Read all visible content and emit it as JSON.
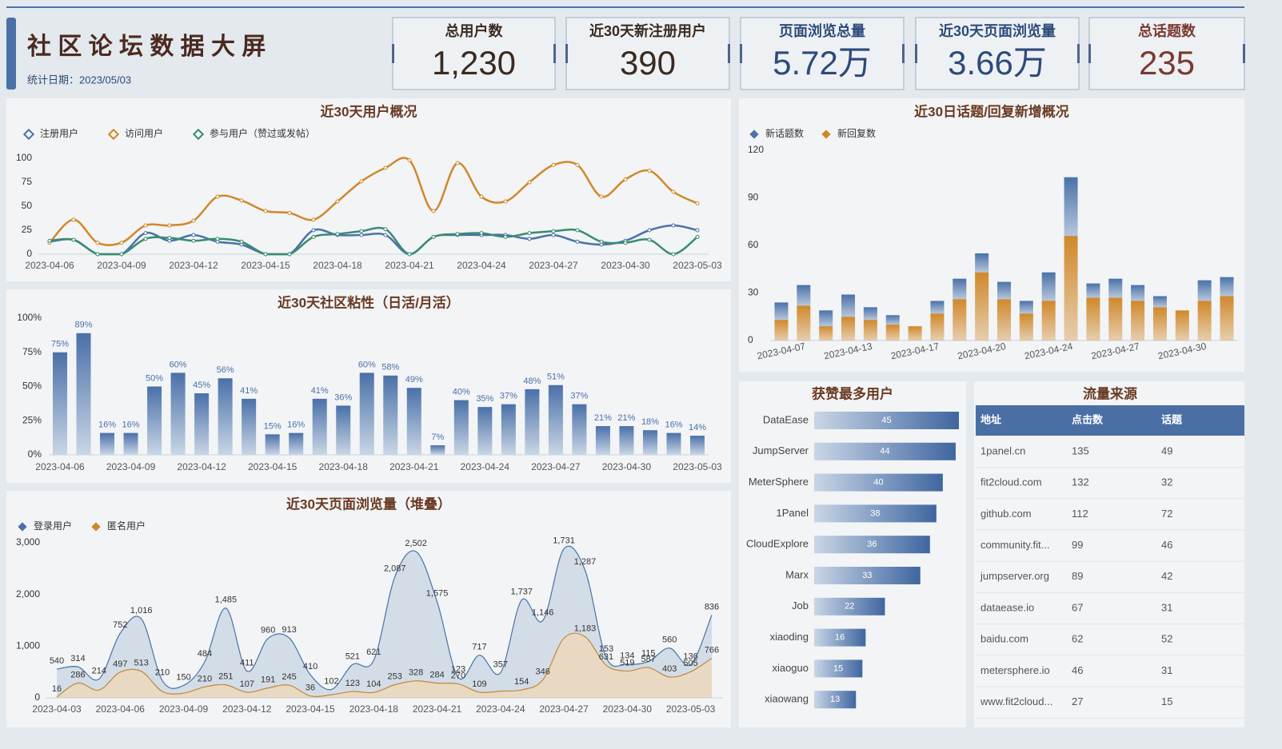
{
  "header": {
    "title": "社 区 论 坛 数 据 大 屏",
    "date": "统计日期：2023/05/03"
  },
  "kpis": [
    {
      "label": "总用户数",
      "value": "1,230",
      "color": "#3a2a20"
    },
    {
      "label": "近30天新注册用户",
      "value": "390",
      "color": "#3a2a20"
    },
    {
      "label": "页面浏览总量",
      "value": "5.72万",
      "color": "#2d4a7a"
    },
    {
      "label": "近30天页面浏览量",
      "value": "3.66万",
      "color": "#2d4a7a"
    },
    {
      "label": "总话题数",
      "value": "235",
      "color": "#7a3a30"
    }
  ],
  "chart_data": [
    {
      "type": "line",
      "title": "近30天用户概况",
      "categories": [
        "2023-04-06",
        null,
        null,
        "2023-04-09",
        null,
        null,
        "2023-04-12",
        null,
        null,
        "2023-04-15",
        null,
        null,
        "2023-04-18",
        null,
        null,
        "2023-04-21",
        null,
        null,
        "2023-04-24",
        null,
        null,
        "2023-04-27",
        null,
        null,
        "2023-04-30",
        null,
        null,
        "2023-05-03"
      ],
      "series": [
        {
          "name": "注册用户",
          "color": "#4a72a8",
          "values": [
            13,
            15,
            0,
            0,
            22,
            14,
            20,
            13,
            10,
            0,
            0,
            25,
            20,
            20,
            20,
            0,
            18,
            20,
            20,
            20,
            16,
            20,
            13,
            10,
            14,
            25,
            30,
            25
          ]
        },
        {
          "name": "访问用户",
          "color": "#d0882a",
          "values": [
            12,
            36,
            12,
            12,
            30,
            30,
            35,
            60,
            56,
            45,
            43,
            36,
            55,
            76,
            90,
            98,
            45,
            95,
            60,
            55,
            75,
            93,
            93,
            60,
            78,
            87,
            65,
            53
          ]
        },
        {
          "name": "参与用户（赞过或发帖）",
          "color": "#3b8a72",
          "values": [
            14,
            15,
            0,
            0,
            16,
            17,
            14,
            16,
            13,
            0,
            0,
            18,
            21,
            24,
            26,
            0,
            18,
            21,
            22,
            18,
            22,
            24,
            25,
            13,
            12,
            15,
            0,
            18
          ]
        }
      ],
      "ylim": [
        0,
        100
      ],
      "yticks": [
        0,
        25,
        50,
        75,
        100
      ],
      "grid": false,
      "legend": "top-left"
    },
    {
      "type": "bar",
      "title": "近30天社区粘性（日活/月活）",
      "categories": [
        "2023-04-06",
        null,
        null,
        "2023-04-09",
        null,
        null,
        "2023-04-12",
        null,
        null,
        "2023-04-15",
        null,
        null,
        "2023-04-18",
        null,
        null,
        "2023-04-21",
        null,
        null,
        "2023-04-24",
        null,
        null,
        "2023-04-27",
        null,
        null,
        "2023-04-30",
        null,
        null,
        "2023-05-03"
      ],
      "values": [
        75,
        89,
        16,
        16,
        50,
        60,
        45,
        56,
        41,
        15,
        16,
        41,
        36,
        60,
        58,
        49,
        7,
        40,
        35,
        37,
        48,
        51,
        37,
        21,
        21,
        18,
        16,
        14
      ],
      "value_labels": [
        "75%",
        "89%",
        "16%",
        "16%",
        "50%",
        "60%",
        "45%",
        "56%",
        "41%",
        "15%",
        "16%",
        "41%",
        "36%",
        "60%",
        "58%",
        "49%",
        "7%",
        "40%",
        "35%",
        "37%",
        "48%",
        "51%",
        "37%",
        "21%",
        "21%",
        "18%",
        "16%",
        "14%"
      ],
      "color": "#4a70a8",
      "ylim": [
        0,
        100
      ],
      "yticks": [
        {
          "value": 0,
          "label": "0%"
        },
        {
          "value": 25,
          "label": "25%"
        },
        {
          "value": 50,
          "label": "50%"
        },
        {
          "value": 75,
          "label": "75%"
        },
        {
          "value": 100,
          "label": "100%"
        }
      ],
      "grid": false
    },
    {
      "type": "area",
      "stacked": true,
      "title": "近30天页面浏览量（堆叠）",
      "categories": [
        "2023-04-03",
        null,
        null,
        "2023-04-06",
        null,
        null,
        "2023-04-09",
        null,
        null,
        "2023-04-12",
        null,
        null,
        "2023-04-15",
        null,
        null,
        "2023-04-18",
        null,
        null,
        "2023-04-21",
        null,
        null,
        "2023-04-24",
        null,
        null,
        "2023-04-27",
        null,
        null,
        "2023-04-30",
        null,
        null,
        "2023-05-03",
        null
      ],
      "series": [
        {
          "name": "登录用户",
          "color": "#4a72a8",
          "values": [
            540,
            314,
            214,
            752,
            1016,
            210,
            150,
            484,
            1485,
            411,
            960,
            913,
            410,
            102,
            521,
            621,
            2087,
            2502,
            1575,
            123,
            717,
            357,
            1737,
            1146,
            1731,
            1287,
            153,
            134,
            115,
            560,
            136,
            836
          ],
          "value_labels": [
            "540",
            "314",
            "214",
            "752",
            "1,016",
            "210",
            "150",
            "484",
            "1,485",
            "411",
            "960",
            "913",
            "410",
            "102",
            "521",
            "621",
            "2,087",
            "2,502",
            "1,575",
            "123",
            "717",
            "357",
            "1,737",
            "1,146",
            "1,731",
            "1,287",
            "153",
            "134",
            "115",
            "560",
            "136",
            "836"
          ]
        },
        {
          "name": "匿名用户",
          "color": "#d0882a",
          "values": [
            16,
            286,
            150,
            497,
            513,
            120,
            90,
            210,
            251,
            107,
            191,
            245,
            36,
            60,
            123,
            104,
            253,
            328,
            284,
            270,
            109,
            130,
            154,
            346,
            1150,
            1183,
            631,
            519,
            587,
            403,
            505,
            766
          ],
          "value_labels": [
            "16",
            "286",
            null,
            "497",
            "513",
            null,
            null,
            "210",
            "251",
            "107",
            "191",
            "245",
            "36",
            null,
            "123",
            "104",
            "253",
            "328",
            "284",
            "270",
            "109",
            null,
            "154",
            "346",
            null,
            "1,183",
            "631",
            "519",
            "587",
            "403",
            "505",
            "766"
          ]
        }
      ],
      "ylim": [
        0,
        3000
      ],
      "yticks": [
        0,
        {
          "value": 1000,
          "label": "1,000"
        },
        {
          "value": 2000,
          "label": "2,000"
        },
        {
          "value": 3000,
          "label": "3,000"
        }
      ],
      "grid": false,
      "legend": "top-left"
    },
    {
      "type": "stacked_bar",
      "title": "近30日话题/回复新增概况",
      "categories": [
        "2023-04-07",
        null,
        null,
        "2023-04-13",
        null,
        null,
        "2023-04-17",
        null,
        null,
        "2023-04-20",
        null,
        null,
        "2023-04-24",
        null,
        null,
        "2023-04-27",
        null,
        null,
        "2023-04-30",
        null,
        null
      ],
      "series": [
        {
          "name": "新话题数",
          "color": "#4a72a8",
          "values": [
            11,
            13,
            10,
            14,
            8,
            6,
            0,
            8,
            13,
            12,
            11,
            8,
            18,
            37,
            9,
            12,
            10,
            7,
            0,
            13,
            12
          ]
        },
        {
          "name": "新回复数",
          "color": "#d0882a",
          "values": [
            13,
            22,
            9,
            15,
            13,
            10,
            9,
            17,
            26,
            43,
            26,
            17,
            25,
            66,
            27,
            27,
            25,
            21,
            19,
            25,
            28
          ]
        }
      ],
      "ylim": [
        0,
        120
      ],
      "yticks": [
        0,
        30,
        60,
        90,
        120
      ],
      "grid": false,
      "legend": "top-left"
    },
    {
      "type": "hbar",
      "title": "获赞最多用户",
      "categories": [
        "DataEase",
        "JumpServer",
        "MeterSphere",
        "1Panel",
        "CloudExplore",
        "Marx",
        "Job",
        "xiaoding",
        "xiaoguo",
        "xiaowang"
      ],
      "values": [
        45,
        44,
        40,
        38,
        36,
        33,
        22,
        16,
        15,
        13
      ],
      "color": "#3f66a0",
      "xlim": [
        0,
        45
      ]
    }
  ],
  "table": {
    "title": "流量来源",
    "columns": [
      "地址",
      "点击数",
      "话题"
    ],
    "rows": [
      [
        "1panel.cn",
        135,
        49
      ],
      [
        "fit2cloud.com",
        132,
        32
      ],
      [
        "github.com",
        112,
        72
      ],
      [
        "community.fit...",
        99,
        46
      ],
      [
        "jumpserver.org",
        89,
        42
      ],
      [
        "dataease.io",
        67,
        31
      ],
      [
        "baidu.com",
        62,
        52
      ],
      [
        "metersphere.io",
        46,
        31
      ],
      [
        "www.fit2cloud...",
        27,
        15
      ]
    ]
  }
}
